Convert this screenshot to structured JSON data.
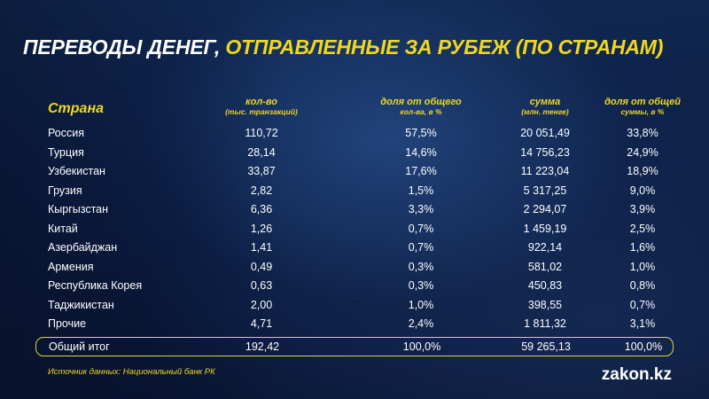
{
  "title": {
    "part1": "ПЕРЕВОДЫ ДЕНЕГ,",
    "part2": "ОТПРАВЛЕННЫЕ ЗА РУБЕЖ (ПО СТРАНАМ)"
  },
  "colors": {
    "accent": "#f0d81e",
    "text": "#ffffff",
    "background": "#0c2149"
  },
  "chart_data": {
    "type": "table",
    "columns": [
      {
        "label": "Страна",
        "sub": ""
      },
      {
        "label": "кол-во",
        "sub": "(тыс. транзакций)"
      },
      {
        "label": "доля от общего",
        "sub": "кол-ва, в %"
      },
      {
        "label": "сумма",
        "sub": "(млн. тенге)"
      },
      {
        "label": "доля от общей",
        "sub": "суммы, в %"
      }
    ],
    "rows": [
      [
        "Россия",
        "110,72",
        "57,5%",
        "20 051,49",
        "33,8%"
      ],
      [
        "Турция",
        "28,14",
        "14,6%",
        "14 756,23",
        "24,9%"
      ],
      [
        "Узбекистан",
        "33,87",
        "17,6%",
        "11 223,04",
        "18,9%"
      ],
      [
        "Грузия",
        "2,82",
        "1,5%",
        "5 317,25",
        "9,0%"
      ],
      [
        "Кыргызстан",
        "6,36",
        "3,3%",
        "2 294,07",
        "3,9%"
      ],
      [
        "Китай",
        "1,26",
        "0,7%",
        "1 459,19",
        "2,5%"
      ],
      [
        "Азербайджан",
        "1,41",
        "0,7%",
        "922,14",
        "1,6%"
      ],
      [
        "Армения",
        "0,49",
        "0,3%",
        "581,02",
        "1,0%"
      ],
      [
        "Республика Корея",
        "0,63",
        "0,3%",
        "450,83",
        "0,8%"
      ],
      [
        "Таджикистан",
        "2,00",
        "1,0%",
        "398,55",
        "0,7%"
      ],
      [
        "Прочие",
        "4,71",
        "2,4%",
        "1 811,32",
        "3,1%"
      ]
    ],
    "total": [
      "Общий итог",
      "192,42",
      "100,0%",
      "59 265,13",
      "100,0%"
    ]
  },
  "footer": {
    "source": "Источник данных: Национальный банк РК",
    "brand": "zakon.kz"
  }
}
